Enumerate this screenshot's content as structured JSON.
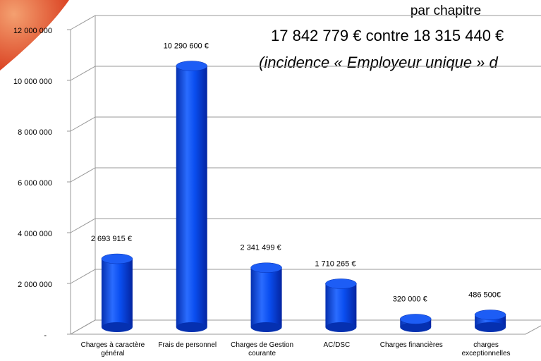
{
  "chart_data": {
    "type": "bar",
    "title_lines": [
      "par chapitre",
      "17 842 779 € contre 18 315 440 €",
      "(incidence « Employeur unique » d"
    ],
    "categories": [
      "Charges à caractère général",
      "Frais de personnel",
      "Charges de Gestion courante",
      "AC/DSC",
      "Charges financières",
      "charges exceptionnelles"
    ],
    "values": [
      2693915,
      10290600,
      2341499,
      1710265,
      320000,
      486500
    ],
    "value_labels": [
      "2 693 915 €",
      "10 290 600 €",
      "2 341 499 €",
      "1 710 265 €",
      "320 000 €",
      "486 500€"
    ],
    "color": "#0a4ef0",
    "ylim": [
      0,
      12000000
    ],
    "yticks": [
      {
        "value": 0,
        "label": "-"
      },
      {
        "value": 2000000,
        "label": "2 000 000"
      },
      {
        "value": 4000000,
        "label": "4 000 000"
      },
      {
        "value": 6000000,
        "label": "6 000 000"
      },
      {
        "value": 8000000,
        "label": "8 000 000"
      },
      {
        "value": 10000000,
        "label": "10 000 000"
      },
      {
        "value": 12000000,
        "label": "12 000 000"
      }
    ],
    "grid": true
  }
}
